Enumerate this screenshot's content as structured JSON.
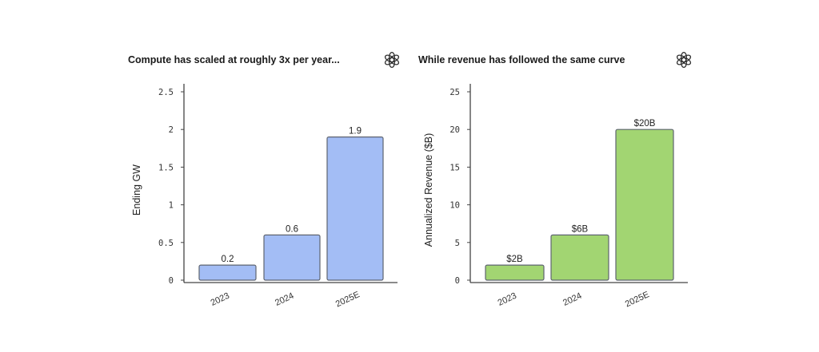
{
  "chart_data": [
    {
      "type": "bar",
      "title": "Compute has scaled at roughly 3x per year...",
      "xlabel": "",
      "ylabel": "Ending GW",
      "categories": [
        "2023",
        "2024",
        "2025E"
      ],
      "values": [
        0.2,
        0.6,
        1.9
      ],
      "data_labels": [
        "0.2",
        "0.6",
        "1.9"
      ],
      "ylim": [
        0,
        2.5
      ],
      "yticks": [
        0,
        0.5,
        1,
        1.5,
        2,
        2.5
      ],
      "ytick_labels": [
        "0",
        "0.5",
        "1",
        "1.5",
        "2",
        "2.5"
      ],
      "color": "#a3bdf5",
      "grid": false,
      "icon": "openai-logo-icon"
    },
    {
      "type": "bar",
      "title": "While revenue has followed the same curve",
      "xlabel": "",
      "ylabel": "Annualized Revenue ($B)",
      "categories": [
        "2023",
        "2024",
        "2025E"
      ],
      "values": [
        2,
        6,
        20
      ],
      "data_labels": [
        "$2B",
        "$6B",
        "$20B"
      ],
      "ylim": [
        0,
        25
      ],
      "yticks": [
        0,
        5,
        10,
        15,
        20,
        25
      ],
      "ytick_labels": [
        "0",
        "5",
        "10",
        "15",
        "20",
        "25"
      ],
      "color": "#a2d572",
      "grid": false,
      "icon": "openai-logo-icon"
    }
  ]
}
